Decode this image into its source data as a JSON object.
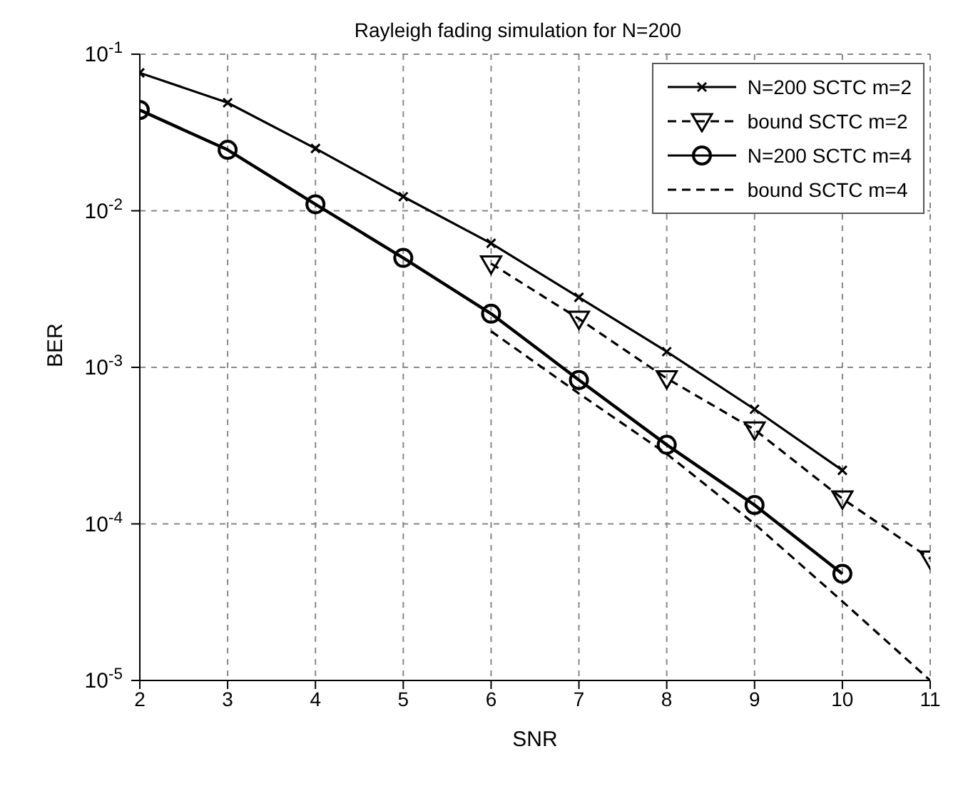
{
  "chart_data": {
    "type": "line",
    "title": "Rayleigh fading simulation for N=200",
    "xlabel": "SNR",
    "ylabel": "BER",
    "log": "y",
    "grid": true,
    "legend": "top right",
    "xlim": [
      2,
      11
    ],
    "xticks": [
      2,
      3,
      4,
      5,
      6,
      7,
      8,
      9,
      10,
      11
    ],
    "ylim": [
      1e-05,
      0.1
    ],
    "yticks": [
      {
        "value": 1e-05,
        "label": "10$^{-5}$"
      },
      {
        "value": 0.0001,
        "label": "10$^{-4}$"
      },
      {
        "value": 0.001,
        "label": "10$^{-3}$"
      },
      {
        "value": 0.01,
        "label": "10$^{-2}$"
      },
      {
        "value": 0.1,
        "label": "10$^{-1}$"
      }
    ],
    "series": [
      {
        "name": "N=200 SCTC m=2",
        "color": "#000000",
        "marker": "cross",
        "line_style": "solid",
        "x": [
          2,
          3,
          4,
          5,
          6,
          7,
          8,
          9,
          10
        ],
        "values": [
          0.076,
          0.049,
          0.025,
          0.0123,
          0.0062,
          0.0028,
          0.00126,
          0.00054,
          0.00022
        ]
      },
      {
        "name": "bound SCTC m=2",
        "color": "#000000",
        "marker": "triangle",
        "line_style": "dashed",
        "x": [
          6,
          7,
          8,
          9,
          10,
          11
        ],
        "values": [
          0.0046,
          0.00204,
          0.00085,
          0.0004,
          0.000145,
          6e-05
        ]
      },
      {
        "name": "N=200 SCTC m=4",
        "color": "#000000",
        "marker": "circle",
        "line_style": "solid",
        "x": [
          2,
          3,
          4,
          5,
          6,
          7,
          8,
          9,
          10
        ],
        "values": [
          0.044,
          0.0245,
          0.011,
          0.005,
          0.0022,
          0.00083,
          0.00032,
          0.000132,
          4.8e-05
        ]
      },
      {
        "name": "bound SCTC m=4",
        "color": "#000000",
        "marker": "none",
        "line_style": "dashed",
        "x": [
          6,
          7,
          8,
          9,
          10,
          11
        ],
        "values": [
          0.0017,
          0.00068,
          0.00028,
          0.0001,
          3.2e-05,
          1e-05
        ]
      }
    ]
  }
}
